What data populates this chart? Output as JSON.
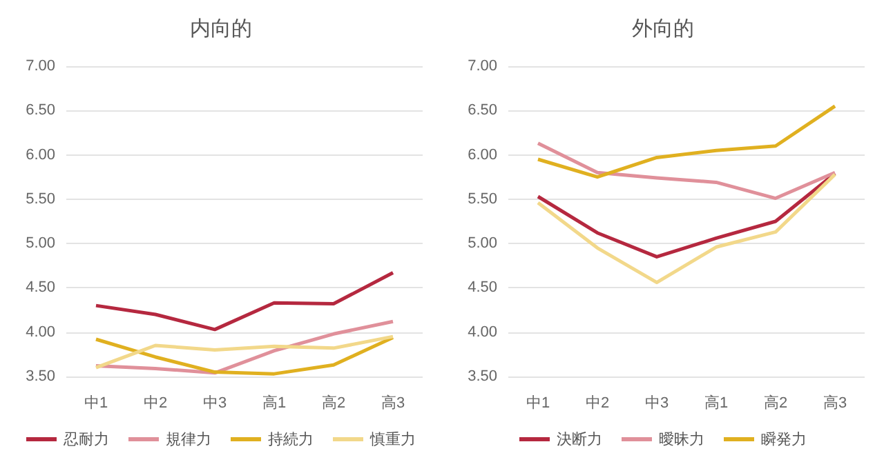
{
  "chart_data": [
    {
      "type": "line",
      "title": "内向的",
      "categories": [
        "中1",
        "中2",
        "中3",
        "高1",
        "高2",
        "高3"
      ],
      "ylim": [
        3.5,
        7
      ],
      "yticks": [
        {
          "value": 3.5,
          "label": "3.50"
        },
        {
          "value": 4,
          "label": "4.00"
        },
        {
          "value": 4.5,
          "label": "4.50"
        },
        {
          "value": 5,
          "label": "5.00"
        },
        {
          "value": 5.5,
          "label": "5.50"
        },
        {
          "value": 6,
          "label": "6.00"
        },
        {
          "value": 6.5,
          "label": "6.50"
        },
        {
          "value": 7,
          "label": "7.00"
        }
      ],
      "grid": "y",
      "legend": "bottom",
      "marker": "none",
      "series": [
        {
          "name": "忍耐力",
          "color": "#b5283f",
          "values": [
            4.3,
            4.2,
            4.03,
            4.33,
            4.32,
            4.67
          ]
        },
        {
          "name": "規律力",
          "color": "#e0909a",
          "values": [
            3.62,
            3.59,
            3.54,
            3.79,
            3.98,
            4.12
          ]
        },
        {
          "name": "持続力",
          "color": "#e0b020",
          "values": [
            3.92,
            3.72,
            3.55,
            3.53,
            3.63,
            3.94
          ]
        },
        {
          "name": "慎重力",
          "color": "#f2d88a",
          "values": [
            3.6,
            3.85,
            3.8,
            3.84,
            3.82,
            3.95
          ]
        }
      ]
    },
    {
      "type": "line",
      "title": "外向的",
      "categories": [
        "中1",
        "中2",
        "中3",
        "高1",
        "高2",
        "高3"
      ],
      "ylim": [
        3.5,
        7
      ],
      "yticks": [
        {
          "value": 3.5,
          "label": "3.50"
        },
        {
          "value": 4,
          "label": "4.00"
        },
        {
          "value": 4.5,
          "label": "4.50"
        },
        {
          "value": 5,
          "label": "5.00"
        },
        {
          "value": 5.5,
          "label": "5.50"
        },
        {
          "value": 6,
          "label": "6.00"
        },
        {
          "value": 6.5,
          "label": "6.50"
        },
        {
          "value": 7,
          "label": "7.00"
        }
      ],
      "grid": "y",
      "legend": "bottom",
      "marker": "none",
      "series": [
        {
          "name": "決断力",
          "color": "#b5283f",
          "values": [
            5.53,
            5.12,
            4.85,
            5.06,
            5.25,
            5.79
          ]
        },
        {
          "name": "曖昧力",
          "color": "#e0909a",
          "values": [
            6.13,
            5.8,
            5.74,
            5.69,
            5.51,
            5.8
          ]
        },
        {
          "name": "瞬発力",
          "color": "#e0b020",
          "values": [
            5.95,
            5.75,
            5.97,
            6.05,
            6.1,
            6.55
          ]
        },
        {
          "color": "#f2d88a",
          "values": [
            5.46,
            4.95,
            4.56,
            4.96,
            5.13,
            5.78
          ]
        }
      ]
    }
  ]
}
